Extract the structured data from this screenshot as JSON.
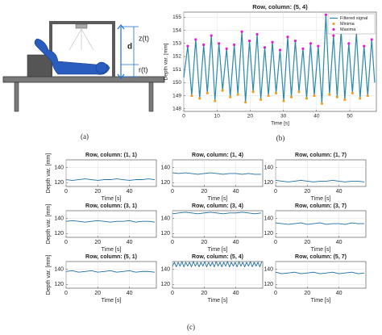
{
  "figure": {
    "captions": [
      "(a)",
      "(b)",
      "(c)"
    ]
  },
  "diagram": {
    "labels": [
      "d",
      "z(t)",
      "r(t)"
    ]
  },
  "chart_data": [
    {
      "type": "line",
      "title": "Row, column: (5, 4)",
      "xlabel": "Time [s]",
      "ylabel": "Depth var. [mm]",
      "xlim": [
        0,
        58
      ],
      "ylim": [
        147.8,
        155.4
      ],
      "xticks": [
        0,
        10,
        20,
        30,
        40,
        50
      ],
      "yticks": [
        148,
        149,
        150,
        151,
        152,
        153,
        154,
        155
      ],
      "grid": true,
      "legend": "upper right",
      "series": [
        {
          "name": "Filtered signal",
          "color": "#2a8aa8",
          "mode": "lines",
          "x": [
            0,
            1.2,
            2.4,
            3.6,
            4.8,
            6.0,
            7.1,
            8.3,
            9.4,
            10.6,
            11.7,
            12.9,
            14.0,
            15.2,
            16.3,
            17.5,
            18.6,
            19.8,
            20.9,
            22.1,
            23.2,
            24.4,
            25.5,
            26.7,
            27.8,
            29.0,
            30.1,
            31.3,
            32.4,
            33.6,
            34.7,
            35.9,
            37.0,
            38.2,
            39.3,
            40.5,
            41.6,
            42.8,
            43.9,
            45.1,
            46.2,
            47.4,
            48.5,
            49.7,
            50.8,
            52.0,
            53.1,
            54.3,
            55.4,
            56.6,
            57.5
          ],
          "values": [
            150.4,
            152.8,
            149.0,
            153.3,
            148.8,
            152.9,
            149.2,
            153.6,
            148.6,
            153.0,
            149.4,
            152.6,
            148.9,
            152.9,
            149.1,
            153.9,
            148.5,
            153.2,
            149.3,
            153.7,
            148.7,
            152.7,
            149.0,
            153.1,
            149.2,
            152.5,
            148.6,
            153.5,
            148.9,
            153.2,
            149.3,
            152.6,
            148.8,
            153.0,
            149.0,
            152.8,
            148.4,
            155.2,
            149.1,
            153.6,
            148.9,
            154.0,
            148.7,
            153.0,
            149.2,
            153.8,
            148.8,
            152.8,
            149.0,
            153.3,
            150.0
          ]
        },
        {
          "name": "Minima",
          "color": "#f0a020",
          "mode": "markers",
          "x": [
            2.4,
            4.8,
            7.1,
            9.4,
            11.7,
            14.0,
            16.3,
            18.6,
            20.9,
            23.2,
            25.5,
            27.8,
            30.1,
            32.4,
            34.7,
            37.0,
            39.3,
            41.6,
            43.9,
            46.2,
            48.5,
            50.8,
            53.1,
            55.4
          ],
          "values": [
            149.0,
            148.8,
            149.2,
            148.6,
            149.4,
            148.9,
            149.1,
            148.5,
            149.3,
            148.7,
            149.0,
            149.2,
            148.6,
            148.9,
            149.3,
            148.8,
            149.0,
            148.4,
            149.1,
            148.9,
            148.7,
            149.2,
            148.8,
            149.0
          ]
        },
        {
          "name": "Maxima",
          "color": "#e020d0",
          "mode": "markers",
          "x": [
            1.2,
            3.6,
            6.0,
            8.3,
            10.6,
            12.9,
            15.2,
            17.5,
            19.8,
            22.1,
            24.4,
            26.7,
            29.0,
            31.3,
            33.6,
            35.9,
            38.2,
            40.5,
            42.8,
            45.1,
            47.4,
            49.7,
            52.0,
            54.3,
            56.6
          ],
          "values": [
            152.8,
            153.3,
            152.9,
            153.6,
            153.0,
            152.6,
            152.9,
            153.9,
            153.2,
            153.7,
            152.7,
            153.1,
            152.5,
            153.5,
            153.2,
            152.6,
            153.0,
            152.8,
            155.2,
            153.6,
            154.0,
            153.0,
            153.8,
            152.8,
            153.3
          ]
        }
      ]
    },
    {
      "type": "line",
      "title": "Row, column: (1, 1)",
      "xlabel": "Time [s]",
      "ylabel": "Depth var. [mm]",
      "xlim": [
        0,
        57
      ],
      "ylim": [
        115,
        150
      ],
      "xticks": [
        0,
        20,
        40
      ],
      "yticks": [
        120,
        140
      ],
      "grid": true,
      "series": [
        {
          "color": "#1f6fa0",
          "mode": "lines",
          "x": [
            0,
            4,
            8,
            12,
            16,
            20,
            24,
            28,
            32,
            36,
            40,
            44,
            48,
            52,
            56
          ],
          "values": [
            124,
            123,
            124,
            125,
            124,
            123,
            124,
            124,
            125,
            124,
            123,
            124,
            124,
            125,
            124
          ]
        }
      ]
    },
    {
      "type": "line",
      "title": "Row, column: (1, 4)",
      "xlabel": "Time [s]",
      "xlim": [
        0,
        57
      ],
      "ylim": [
        115,
        150
      ],
      "xticks": [
        0,
        20,
        40
      ],
      "yticks": [
        120,
        140
      ],
      "grid": true,
      "series": [
        {
          "color": "#1f6fa0",
          "mode": "lines",
          "x": [
            0,
            4,
            8,
            12,
            16,
            20,
            24,
            28,
            32,
            36,
            40,
            44,
            48,
            52,
            56
          ],
          "values": [
            133,
            132,
            133,
            132,
            131,
            132,
            133,
            132,
            131,
            132,
            132,
            131,
            132,
            131,
            131
          ]
        }
      ]
    },
    {
      "type": "line",
      "title": "Row, column: (1, 7)",
      "xlabel": "Time [s]",
      "xlim": [
        0,
        57
      ],
      "ylim": [
        115,
        150
      ],
      "xticks": [
        0,
        20,
        40
      ],
      "yticks": [
        120,
        140
      ],
      "grid": true,
      "series": [
        {
          "color": "#1f6fa0",
          "mode": "lines",
          "x": [
            0,
            4,
            8,
            12,
            16,
            20,
            24,
            28,
            32,
            36,
            40,
            44,
            48,
            52,
            56
          ],
          "values": [
            123,
            122,
            121,
            122,
            123,
            122,
            121,
            122,
            122,
            123,
            122,
            121,
            122,
            122,
            121
          ]
        }
      ]
    },
    {
      "type": "line",
      "title": "Row, column: (3, 1)",
      "xlabel": "Time [s]",
      "ylabel": "Depth var. [mm]",
      "xlim": [
        0,
        57
      ],
      "ylim": [
        115,
        150
      ],
      "xticks": [
        0,
        20,
        40
      ],
      "yticks": [
        120,
        140
      ],
      "grid": true,
      "series": [
        {
          "color": "#1f6fa0",
          "mode": "lines",
          "x": [
            0,
            4,
            8,
            12,
            16,
            20,
            24,
            28,
            32,
            36,
            40,
            44,
            48,
            52,
            56
          ],
          "values": [
            136,
            137,
            136,
            135,
            136,
            137,
            136,
            135,
            136,
            136,
            137,
            135,
            136,
            136,
            135
          ]
        }
      ]
    },
    {
      "type": "line",
      "title": "Row, column: (3, 4)",
      "xlabel": "Time [s]",
      "xlim": [
        0,
        57
      ],
      "ylim": [
        115,
        150
      ],
      "xticks": [
        0,
        20,
        40
      ],
      "yticks": [
        120,
        140
      ],
      "grid": true,
      "series": [
        {
          "color": "#1f6fa0",
          "mode": "lines",
          "x": [
            0,
            4,
            8,
            12,
            16,
            20,
            24,
            28,
            32,
            36,
            40,
            44,
            48,
            52,
            56
          ],
          "values": [
            146,
            147,
            148,
            147,
            146,
            147,
            148,
            147,
            146,
            147,
            147,
            148,
            147,
            146,
            147
          ]
        }
      ]
    },
    {
      "type": "line",
      "title": "Row, column: (3, 7)",
      "xlabel": "Time [s]",
      "xlim": [
        0,
        57
      ],
      "ylim": [
        115,
        150
      ],
      "xticks": [
        0,
        20,
        40
      ],
      "yticks": [
        120,
        140
      ],
      "grid": true,
      "series": [
        {
          "color": "#1f6fa0",
          "mode": "lines",
          "x": [
            0,
            4,
            8,
            12,
            16,
            20,
            24,
            28,
            32,
            36,
            40,
            44,
            48,
            52,
            56
          ],
          "values": [
            134,
            133,
            132,
            133,
            134,
            132,
            133,
            134,
            132,
            133,
            133,
            132,
            134,
            133,
            133
          ]
        }
      ]
    },
    {
      "type": "line",
      "title": "Row, column: (5, 1)",
      "xlabel": "Time [s]",
      "ylabel": "Depth var. [mm]",
      "xlim": [
        0,
        57
      ],
      "ylim": [
        115,
        150
      ],
      "xticks": [
        0,
        20,
        40
      ],
      "yticks": [
        120,
        140
      ],
      "grid": true,
      "series": [
        {
          "color": "#1f6fa0",
          "mode": "lines",
          "x": [
            0,
            4,
            8,
            12,
            16,
            20,
            24,
            28,
            32,
            36,
            40,
            44,
            48,
            52,
            56
          ],
          "values": [
            137,
            138,
            136,
            137,
            138,
            136,
            137,
            138,
            136,
            137,
            138,
            136,
            137,
            137,
            136
          ]
        }
      ]
    },
    {
      "type": "line",
      "title": "Row, column: (5, 4)",
      "xlabel": "Time [s]",
      "xlim": [
        0,
        57
      ],
      "ylim": [
        115,
        150
      ],
      "xticks": [
        0,
        20,
        40
      ],
      "yticks": [
        120,
        140
      ],
      "grid": true,
      "series": [
        {
          "color": "#1f6fa0",
          "mode": "lines",
          "x": [
            0,
            1.2,
            2.4,
            3.6,
            4.8,
            6,
            7.2,
            8.4,
            9.6,
            10.8,
            12,
            13.2,
            14.4,
            15.6,
            16.8,
            18,
            19.2,
            20.4,
            21.6,
            22.8,
            24,
            25.2,
            26.4,
            27.6,
            28.8,
            30,
            31.2,
            32.4,
            33.6,
            34.8,
            36,
            37.2,
            38.4,
            39.6,
            40.8,
            42,
            43.2,
            44.4,
            45.6,
            46.8,
            48,
            49.2,
            50.4,
            51.6,
            52.8,
            54,
            55.2,
            56.4
          ],
          "values": [
            144,
            149,
            143,
            149,
            144,
            150,
            143,
            149,
            144,
            149,
            143,
            150,
            144,
            149,
            143,
            149,
            144,
            150,
            143,
            149,
            144,
            149,
            143,
            150,
            144,
            149,
            143,
            149,
            144,
            150,
            143,
            149,
            144,
            149,
            143,
            150,
            144,
            149,
            143,
            149,
            144,
            150,
            143,
            149,
            144,
            149,
            143,
            150
          ]
        }
      ]
    },
    {
      "type": "line",
      "title": "Row, column: (5, 7)",
      "xlabel": "Time [s]",
      "xlim": [
        0,
        57
      ],
      "ylim": [
        115,
        150
      ],
      "xticks": [
        0,
        20,
        40
      ],
      "yticks": [
        120,
        140
      ],
      "grid": true,
      "series": [
        {
          "color": "#1f6fa0",
          "mode": "lines",
          "x": [
            0,
            4,
            8,
            12,
            16,
            20,
            24,
            28,
            32,
            36,
            40,
            44,
            48,
            52,
            56
          ],
          "values": [
            136,
            134,
            135,
            136,
            134,
            135,
            136,
            134,
            135,
            136,
            134,
            135,
            136,
            134,
            135
          ]
        }
      ]
    }
  ]
}
